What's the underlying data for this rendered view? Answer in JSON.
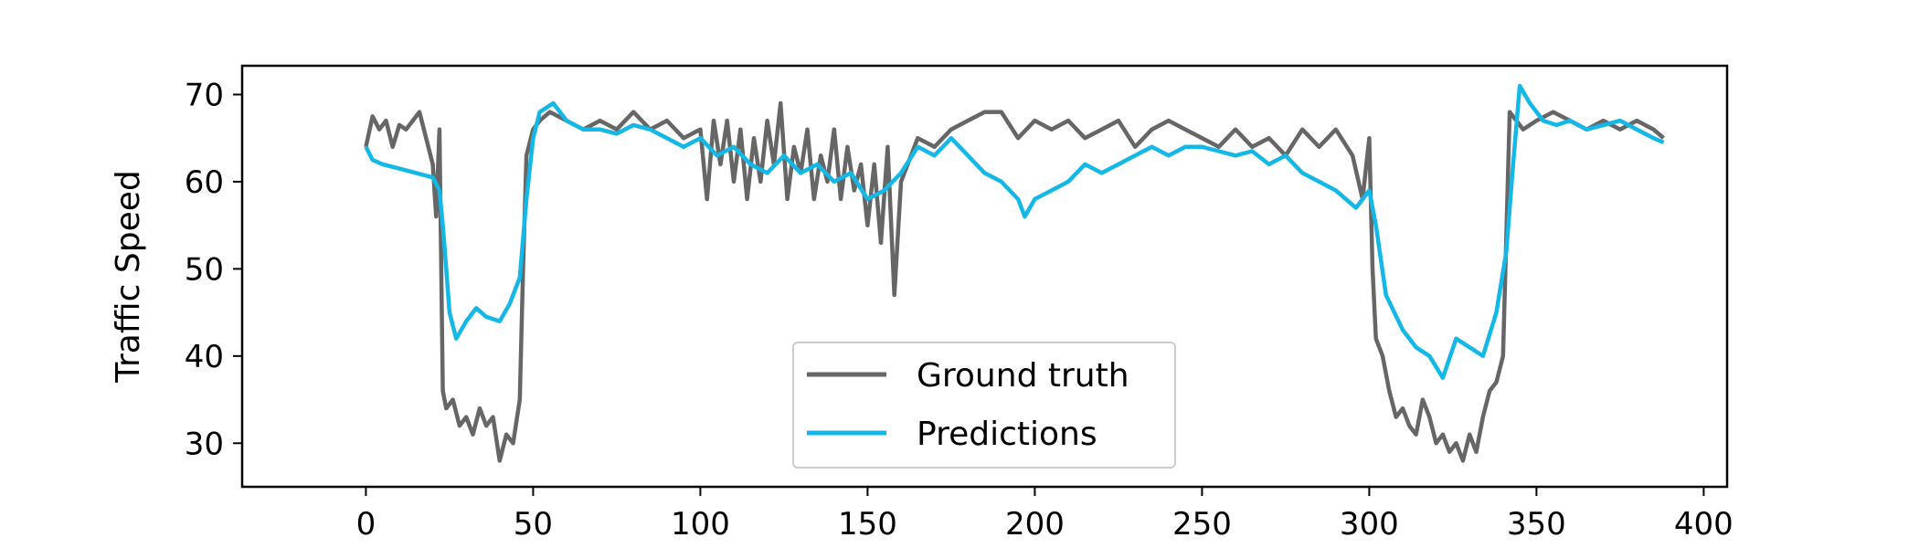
{
  "chart_data": {
    "type": "line",
    "title": "",
    "xlabel": "",
    "ylabel": "Traffic Speed",
    "xlim": [
      -37,
      407
    ],
    "ylim": [
      25,
      73.3
    ],
    "xticks": [
      0,
      50,
      100,
      150,
      200,
      250,
      300,
      350,
      400
    ],
    "yticks": [
      30,
      40,
      50,
      60,
      70
    ],
    "grid": false,
    "legend_position": "lower-center",
    "series": [
      {
        "name": "Ground truth",
        "color": "#666666",
        "x": [
          0,
          2,
          4,
          6,
          8,
          10,
          12,
          14,
          16,
          18,
          20,
          21,
          22,
          23,
          24,
          26,
          28,
          30,
          32,
          34,
          36,
          38,
          40,
          42,
          44,
          46,
          47,
          48,
          50,
          52,
          55,
          60,
          65,
          70,
          75,
          80,
          85,
          90,
          95,
          100,
          102,
          104,
          106,
          108,
          110,
          112,
          114,
          116,
          118,
          120,
          122,
          124,
          126,
          128,
          130,
          132,
          134,
          136,
          138,
          140,
          142,
          144,
          146,
          148,
          150,
          152,
          154,
          156,
          158,
          160,
          165,
          170,
          175,
          180,
          185,
          190,
          195,
          200,
          205,
          210,
          215,
          220,
          225,
          230,
          235,
          240,
          245,
          250,
          255,
          260,
          265,
          270,
          275,
          280,
          285,
          290,
          295,
          298,
          300,
          301,
          302,
          303,
          304,
          306,
          308,
          310,
          312,
          314,
          316,
          318,
          320,
          322,
          324,
          326,
          328,
          330,
          332,
          334,
          336,
          338,
          340,
          342,
          344,
          346,
          350,
          355,
          360,
          365,
          370,
          375,
          380,
          385,
          388
        ],
        "y": [
          64,
          67.5,
          66,
          67,
          64,
          66.5,
          66,
          67,
          68,
          65,
          62,
          56,
          66,
          36,
          34,
          35,
          32,
          33,
          31,
          34,
          32,
          33,
          28,
          31,
          30,
          35,
          50,
          63,
          66,
          67,
          68,
          67,
          66,
          67,
          66,
          68,
          66,
          67,
          65,
          66,
          58,
          67,
          62,
          67,
          60,
          66,
          58,
          65,
          60,
          67,
          62,
          69,
          58,
          64,
          61,
          66,
          58,
          63,
          60,
          66,
          58,
          64,
          59,
          62,
          55,
          62,
          53,
          64,
          47,
          60,
          65,
          64,
          66,
          67,
          68,
          68,
          65,
          67,
          66,
          67,
          65,
          66,
          67,
          64,
          66,
          67,
          66,
          65,
          64,
          66,
          64,
          65,
          63,
          66,
          64,
          66,
          63,
          58,
          65,
          50,
          42,
          41,
          40,
          36,
          33,
          34,
          32,
          31,
          35,
          33,
          30,
          31,
          29,
          30,
          28,
          31,
          29,
          33,
          36,
          37,
          40,
          68,
          67,
          66,
          67,
          68,
          67,
          66,
          67,
          66,
          67,
          66,
          65
        ]
      },
      {
        "name": "Predictions",
        "color": "#14b8e6",
        "x": [
          0,
          2,
          5,
          10,
          15,
          20,
          22,
          23,
          24,
          25,
          27,
          30,
          33,
          36,
          40,
          43,
          46,
          48,
          50,
          52,
          56,
          60,
          65,
          70,
          75,
          80,
          85,
          90,
          95,
          100,
          105,
          110,
          115,
          120,
          125,
          130,
          135,
          140,
          145,
          150,
          155,
          160,
          165,
          170,
          175,
          180,
          185,
          190,
          195,
          197,
          200,
          205,
          210,
          215,
          220,
          225,
          230,
          235,
          240,
          245,
          250,
          255,
          260,
          265,
          270,
          275,
          280,
          285,
          290,
          293,
          296,
          300,
          302,
          305,
          310,
          314,
          318,
          322,
          326,
          330,
          334,
          338,
          341,
          343,
          345,
          348,
          352,
          356,
          360,
          365,
          370,
          375,
          380,
          385,
          388
        ],
        "y": [
          64,
          62.5,
          62,
          61.5,
          61,
          60.5,
          59,
          55,
          50,
          45,
          42,
          44,
          45.5,
          44.5,
          44,
          46,
          49,
          58,
          65,
          68,
          69,
          67,
          66,
          66,
          65.5,
          66.5,
          66,
          65,
          64,
          65,
          63,
          64,
          62,
          61,
          63,
          61,
          62,
          60,
          61,
          58,
          59,
          61,
          64,
          63,
          65,
          63,
          61,
          60,
          58,
          56,
          58,
          59,
          60,
          62,
          61,
          62,
          63,
          64,
          63,
          64,
          64,
          63.5,
          63,
          63.5,
          62,
          63,
          61,
          60,
          59,
          58,
          57,
          59,
          55,
          47,
          43,
          41,
          40,
          37.5,
          42,
          41,
          40,
          45,
          52,
          62,
          71,
          69,
          67,
          66.5,
          67,
          66,
          66.5,
          67,
          66,
          65,
          64.5
        ]
      }
    ]
  }
}
